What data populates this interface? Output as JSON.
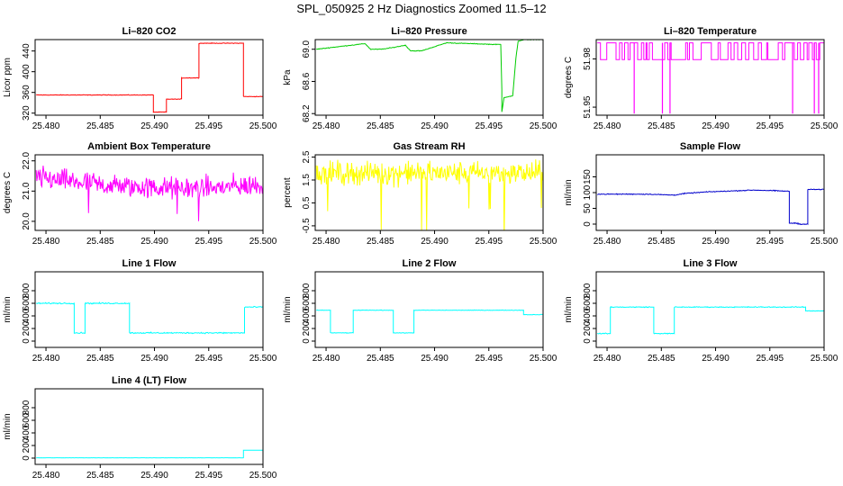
{
  "figure": {
    "title": "SPL_050925  2 Hz Diagnostics Zoomed 11.5–12"
  },
  "x_axis": {
    "ticks": [
      25.48,
      25.485,
      25.49,
      25.495,
      25.5
    ],
    "tick_labels": [
      "25.480",
      "25.485",
      "25.490",
      "25.495",
      "25.500"
    ],
    "xlim": [
      25.479,
      25.5
    ]
  },
  "chart_data": [
    {
      "type": "line",
      "title": "Li–820 CO2",
      "ylabel": "Licor ppm",
      "ylim": [
        316,
        462
      ],
      "yticks": [
        320,
        360,
        400,
        440
      ],
      "color": "#ff0000",
      "noise": 0.8,
      "series": [
        {
          "x": [
            25.4791,
            25.4899,
            25.4899,
            25.4911,
            25.4911,
            25.4925,
            25.4925,
            25.4941,
            25.4941,
            25.4948,
            25.4948,
            25.4982,
            25.4982,
            25.5
          ],
          "y": [
            355,
            355,
            322,
            322,
            347,
            347,
            388,
            388,
            455,
            455,
            455,
            455,
            352,
            352
          ]
        }
      ]
    },
    {
      "type": "line",
      "title": "Li–820 Pressure",
      "ylabel": "kPa",
      "ylim": [
        68.18,
        69.12
      ],
      "yticks": [
        68.2,
        68.6,
        69.0
      ],
      "ytick_labels": [
        "68.2",
        "68.6",
        "69.0"
      ],
      "color": "#00cc00",
      "noise": 0.006,
      "series": [
        {
          "x": [
            25.4791,
            25.4823,
            25.4836,
            25.4841,
            25.4851,
            25.4861,
            25.4873,
            25.4878,
            25.4888,
            25.4911,
            25.4955,
            25.4961,
            25.4962,
            25.4962,
            25.4964,
            25.4972,
            25.4975,
            25.4977,
            25.4983,
            25.5
          ],
          "y": [
            69.0,
            69.05,
            69.07,
            69.0,
            69.0,
            69.02,
            69.05,
            68.98,
            68.98,
            69.08,
            69.06,
            69.06,
            68.5,
            68.22,
            68.4,
            68.42,
            68.9,
            69.1,
            69.12,
            69.12
          ]
        }
      ]
    },
    {
      "type": "line",
      "title": "Li–820 Temperature",
      "ylabel": "degrees C",
      "ylim": [
        51.945,
        51.992
      ],
      "yticks": [
        51.95,
        51.98
      ],
      "ytick_labels": [
        "51.95",
        "51.98"
      ],
      "color": "#ff00ff",
      "style": "binary",
      "levels": [
        51.99,
        51.9795
      ],
      "dips": [
        {
          "x": 25.4825,
          "y": 51.946
        },
        {
          "x": 25.4851,
          "y": 51.946
        },
        {
          "x": 25.4858,
          "y": 51.946
        },
        {
          "x": 25.4971,
          "y": 51.946
        },
        {
          "x": 25.4991,
          "y": 51.946
        },
        {
          "x": 25.4995,
          "y": 51.946
        }
      ],
      "series": [
        {
          "x": [
            25.4791,
            25.5
          ],
          "y": [
            51.99,
            51.9795
          ]
        }
      ]
    },
    {
      "type": "line",
      "title": "Ambient Box Temperature",
      "ylabel": "degrees C",
      "ylim": [
        19.7,
        22.2
      ],
      "yticks": [
        20.0,
        21.0,
        22.0
      ],
      "ytick_labels": [
        "20.0",
        "21.0",
        "22.0"
      ],
      "color": "#ff00ff",
      "noise": 0.55,
      "series": [
        {
          "x": [
            25.4791,
            25.485,
            25.49,
            25.495,
            25.5
          ],
          "y": [
            21.45,
            21.2,
            21.1,
            21.1,
            21.2
          ]
        }
      ]
    },
    {
      "type": "line",
      "title": "Gas Stream RH",
      "ylabel": "percent",
      "ylim": [
        -0.7,
        2.6
      ],
      "yticks": [
        -0.5,
        0.5,
        1.5,
        2.5
      ],
      "ytick_labels": [
        "-0.5",
        "0.5",
        "1.5",
        "2.5"
      ],
      "color": "#ffff00",
      "noise": 0.75,
      "series": [
        {
          "x": [
            25.4791,
            25.5
          ],
          "y": [
            1.8,
            1.8
          ]
        }
      ]
    },
    {
      "type": "line",
      "title": "Sample Flow",
      "ylabel": "ml/min",
      "ylim": [
        -20,
        220
      ],
      "yticks": [
        0,
        50,
        100,
        150
      ],
      "color": "#0000cc",
      "noise": 2,
      "series": [
        {
          "x": [
            25.4791,
            25.4838,
            25.4862,
            25.4871,
            25.4891,
            25.4935,
            25.4955,
            25.4968,
            25.4968,
            25.4976,
            25.4976,
            25.4985,
            25.4985,
            25.5
          ],
          "y": [
            95,
            95,
            92,
            97,
            102,
            108,
            106,
            104,
            3,
            3,
            0,
            0,
            110,
            110
          ]
        }
      ]
    },
    {
      "type": "line",
      "title": "Line 1 Flow",
      "ylabel": "ml/min",
      "ylim": [
        -100,
        1100
      ],
      "yticks": [
        0,
        200,
        400,
        600,
        800
      ],
      "color": "#00ffff",
      "noise": 15,
      "series": [
        {
          "x": [
            25.4791,
            25.4826,
            25.4826,
            25.4836,
            25.4836,
            25.4877,
            25.4877,
            25.4983,
            25.4983,
            25.5
          ],
          "y": [
            600,
            600,
            130,
            130,
            600,
            600,
            130,
            130,
            540,
            540
          ]
        }
      ]
    },
    {
      "type": "line",
      "title": "Line 2 Flow",
      "ylabel": "ml/min",
      "ylim": [
        -100,
        1100
      ],
      "yticks": [
        0,
        200,
        400,
        600,
        800
      ],
      "color": "#00ffff",
      "noise": 6,
      "series": [
        {
          "x": [
            25.4791,
            25.4804,
            25.4804,
            25.4825,
            25.4825,
            25.4862,
            25.4862,
            25.4881,
            25.4881,
            25.4982,
            25.4982,
            25.5
          ],
          "y": [
            490,
            490,
            130,
            130,
            490,
            490,
            130,
            130,
            490,
            490,
            420,
            420
          ]
        }
      ]
    },
    {
      "type": "line",
      "title": "Line 3 Flow",
      "ylabel": "ml/min",
      "ylim": [
        -100,
        1100
      ],
      "yticks": [
        0,
        200,
        400,
        600,
        800
      ],
      "color": "#00ffff",
      "noise": 10,
      "series": [
        {
          "x": [
            25.4791,
            25.4803,
            25.4803,
            25.4843,
            25.4843,
            25.4862,
            25.4862,
            25.4983,
            25.4983,
            25.5
          ],
          "y": [
            120,
            120,
            540,
            540,
            120,
            120,
            540,
            540,
            480,
            480
          ]
        }
      ]
    },
    {
      "type": "line",
      "title": "Line 4 (LT) Flow",
      "ylabel": "ml/min",
      "ylim": [
        -100,
        1100
      ],
      "yticks": [
        0,
        200,
        400,
        600,
        800
      ],
      "color": "#00ffff",
      "noise": 1,
      "series": [
        {
          "x": [
            25.4791,
            25.4982,
            25.4982,
            25.5
          ],
          "y": [
            5,
            5,
            125,
            125
          ]
        }
      ]
    }
  ]
}
